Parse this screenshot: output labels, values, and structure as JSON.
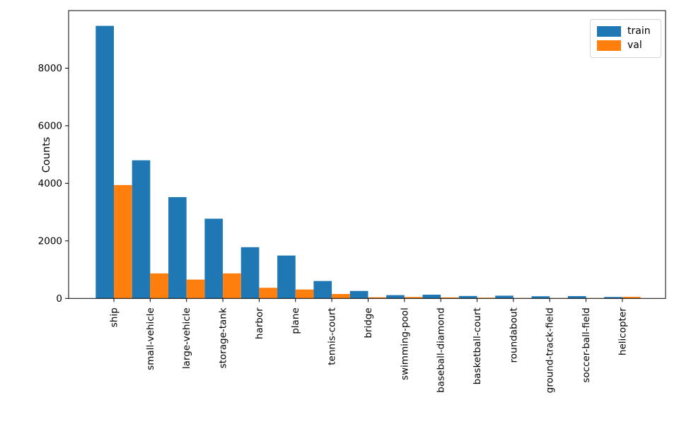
{
  "chart_data": {
    "type": "bar",
    "title": "",
    "xlabel": "",
    "ylabel": "Counts",
    "categories": [
      "ship",
      "small-vehicle",
      "large-vehicle",
      "storage-tank",
      "harbor",
      "plane",
      "tennis-court",
      "bridge",
      "swimming-pool",
      "baseball-diamond",
      "basketball-court",
      "roundabout",
      "ground-track-field",
      "soccer-ball-field",
      "helicopter"
    ],
    "series": [
      {
        "name": "train",
        "color": "#1f77b4",
        "values": [
          9470,
          4800,
          3520,
          2770,
          1780,
          1490,
          605,
          260,
          115,
          130,
          85,
          95,
          75,
          80,
          50
        ]
      },
      {
        "name": "val",
        "color": "#ff7f0e",
        "values": [
          3940,
          870,
          655,
          870,
          370,
          310,
          155,
          40,
          50,
          35,
          25,
          15,
          10,
          10,
          55
        ]
      }
    ],
    "yticks": [
      0,
      2000,
      4000,
      6000,
      8000
    ],
    "ylim": [
      0,
      10000
    ],
    "grid": false,
    "legend_position": "upper right",
    "axis_color": "#000000",
    "background_color": "#ffffff"
  }
}
